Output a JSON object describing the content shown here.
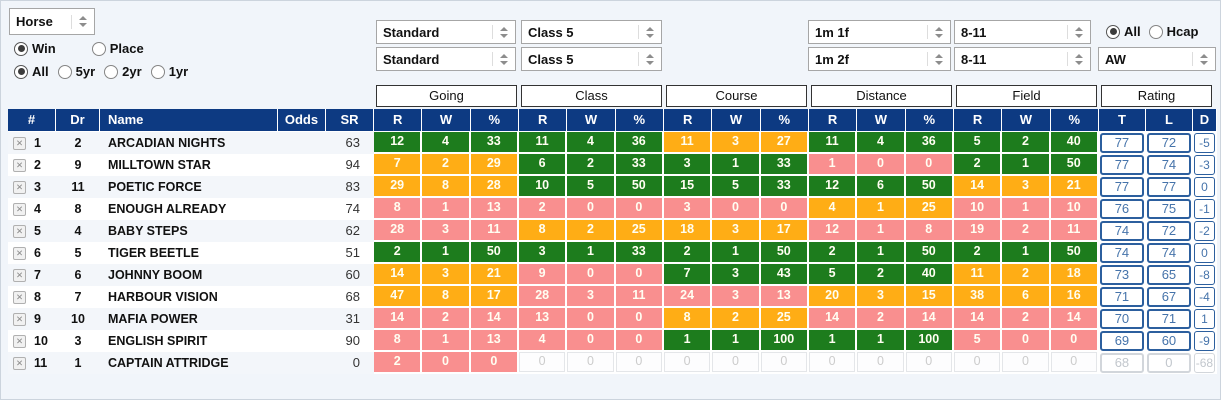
{
  "selects": {
    "horse": "Horse",
    "going1": "Standard",
    "going2": "Standard",
    "class1": "Class 5",
    "class2": "Class 5",
    "distance1": "1m 1f",
    "distance2": "1m 2f",
    "weight1": "8-11",
    "weight2": "8-11",
    "surface": "AW"
  },
  "radios": {
    "win_place": [
      {
        "label": "Win",
        "selected": true
      },
      {
        "label": "Place",
        "selected": false
      }
    ],
    "age": [
      {
        "label": "All",
        "selected": true
      },
      {
        "label": "5yr",
        "selected": false
      },
      {
        "label": "2yr",
        "selected": false
      },
      {
        "label": "1yr",
        "selected": false
      }
    ],
    "race_type": [
      {
        "label": "All",
        "selected": true
      },
      {
        "label": "Hcap",
        "selected": false
      }
    ]
  },
  "colors": {
    "header_navy": "#0d3a82",
    "green": "#1d7c1d",
    "orange": "#ffad15",
    "pink": "#f98f8f",
    "rating_border": "#2c5f9e",
    "rating_text": "#4573aa"
  },
  "table": {
    "group_headers": [
      "Going",
      "Class",
      "Course",
      "Distance",
      "Field",
      "Rating"
    ],
    "columns": {
      "num": "#",
      "dr": "Dr",
      "name": "Name",
      "odds": "Odds",
      "sr": "SR",
      "stat_sub": [
        "R",
        "W",
        "%"
      ],
      "rating_sub": [
        "T",
        "L",
        "D"
      ]
    },
    "rows": [
      {
        "num": "1",
        "dr": "2",
        "name": "ARCADIAN NIGHTS",
        "odds": "",
        "sr": "63",
        "going": {
          "r": "12",
          "w": "4",
          "pct": "33",
          "color": "green"
        },
        "class": {
          "r": "11",
          "w": "4",
          "pct": "36",
          "color": "green"
        },
        "course": {
          "r": "11",
          "w": "3",
          "pct": "27",
          "color": "orange"
        },
        "distance": {
          "r": "11",
          "w": "4",
          "pct": "36",
          "color": "green"
        },
        "field": {
          "r": "5",
          "w": "2",
          "pct": "40",
          "color": "green"
        },
        "rating": {
          "t": "77",
          "l": "72",
          "d": "-5",
          "muted": false
        }
      },
      {
        "num": "2",
        "dr": "9",
        "name": "MILLTOWN STAR",
        "odds": "",
        "sr": "94",
        "going": {
          "r": "7",
          "w": "2",
          "pct": "29",
          "color": "orange"
        },
        "class": {
          "r": "6",
          "w": "2",
          "pct": "33",
          "color": "green"
        },
        "course": {
          "r": "3",
          "w": "1",
          "pct": "33",
          "color": "green"
        },
        "distance": {
          "r": "1",
          "w": "0",
          "pct": "0",
          "color": "pink"
        },
        "field": {
          "r": "2",
          "w": "1",
          "pct": "50",
          "color": "green"
        },
        "rating": {
          "t": "77",
          "l": "74",
          "d": "-3",
          "muted": false
        }
      },
      {
        "num": "3",
        "dr": "11",
        "name": "POETIC FORCE",
        "odds": "",
        "sr": "83",
        "going": {
          "r": "29",
          "w": "8",
          "pct": "28",
          "color": "orange"
        },
        "class": {
          "r": "10",
          "w": "5",
          "pct": "50",
          "color": "green"
        },
        "course": {
          "r": "15",
          "w": "5",
          "pct": "33",
          "color": "green"
        },
        "distance": {
          "r": "12",
          "w": "6",
          "pct": "50",
          "color": "green"
        },
        "field": {
          "r": "14",
          "w": "3",
          "pct": "21",
          "color": "orange"
        },
        "rating": {
          "t": "77",
          "l": "77",
          "d": "0",
          "muted": false
        }
      },
      {
        "num": "4",
        "dr": "8",
        "name": "ENOUGH ALREADY",
        "odds": "",
        "sr": "74",
        "going": {
          "r": "8",
          "w": "1",
          "pct": "13",
          "color": "pink"
        },
        "class": {
          "r": "2",
          "w": "0",
          "pct": "0",
          "color": "pink"
        },
        "course": {
          "r": "3",
          "w": "0",
          "pct": "0",
          "color": "pink"
        },
        "distance": {
          "r": "4",
          "w": "1",
          "pct": "25",
          "color": "orange"
        },
        "field": {
          "r": "10",
          "w": "1",
          "pct": "10",
          "color": "pink"
        },
        "rating": {
          "t": "76",
          "l": "75",
          "d": "-1",
          "muted": false
        }
      },
      {
        "num": "5",
        "dr": "4",
        "name": "BABY STEPS",
        "odds": "",
        "sr": "62",
        "going": {
          "r": "28",
          "w": "3",
          "pct": "11",
          "color": "pink"
        },
        "class": {
          "r": "8",
          "w": "2",
          "pct": "25",
          "color": "orange"
        },
        "course": {
          "r": "18",
          "w": "3",
          "pct": "17",
          "color": "orange"
        },
        "distance": {
          "r": "12",
          "w": "1",
          "pct": "8",
          "color": "pink"
        },
        "field": {
          "r": "19",
          "w": "2",
          "pct": "11",
          "color": "pink"
        },
        "rating": {
          "t": "74",
          "l": "72",
          "d": "-2",
          "muted": false
        }
      },
      {
        "num": "6",
        "dr": "5",
        "name": "TIGER BEETLE",
        "odds": "",
        "sr": "51",
        "going": {
          "r": "2",
          "w": "1",
          "pct": "50",
          "color": "green"
        },
        "class": {
          "r": "3",
          "w": "1",
          "pct": "33",
          "color": "green"
        },
        "course": {
          "r": "2",
          "w": "1",
          "pct": "50",
          "color": "green"
        },
        "distance": {
          "r": "2",
          "w": "1",
          "pct": "50",
          "color": "green"
        },
        "field": {
          "r": "2",
          "w": "1",
          "pct": "50",
          "color": "green"
        },
        "rating": {
          "t": "74",
          "l": "74",
          "d": "0",
          "muted": false
        }
      },
      {
        "num": "7",
        "dr": "6",
        "name": "JOHNNY BOOM",
        "odds": "",
        "sr": "60",
        "going": {
          "r": "14",
          "w": "3",
          "pct": "21",
          "color": "orange"
        },
        "class": {
          "r": "9",
          "w": "0",
          "pct": "0",
          "color": "pink"
        },
        "course": {
          "r": "7",
          "w": "3",
          "pct": "43",
          "color": "green"
        },
        "distance": {
          "r": "5",
          "w": "2",
          "pct": "40",
          "color": "green"
        },
        "field": {
          "r": "11",
          "w": "2",
          "pct": "18",
          "color": "orange"
        },
        "rating": {
          "t": "73",
          "l": "65",
          "d": "-8",
          "muted": false
        }
      },
      {
        "num": "8",
        "dr": "7",
        "name": "HARBOUR VISION",
        "odds": "",
        "sr": "68",
        "going": {
          "r": "47",
          "w": "8",
          "pct": "17",
          "color": "orange"
        },
        "class": {
          "r": "28",
          "w": "3",
          "pct": "11",
          "color": "pink"
        },
        "course": {
          "r": "24",
          "w": "3",
          "pct": "13",
          "color": "pink"
        },
        "distance": {
          "r": "20",
          "w": "3",
          "pct": "15",
          "color": "orange"
        },
        "field": {
          "r": "38",
          "w": "6",
          "pct": "16",
          "color": "orange"
        },
        "rating": {
          "t": "71",
          "l": "67",
          "d": "-4",
          "muted": false
        }
      },
      {
        "num": "9",
        "dr": "10",
        "name": "MAFIA POWER",
        "odds": "",
        "sr": "31",
        "going": {
          "r": "14",
          "w": "2",
          "pct": "14",
          "color": "pink"
        },
        "class": {
          "r": "13",
          "w": "0",
          "pct": "0",
          "color": "pink"
        },
        "course": {
          "r": "8",
          "w": "2",
          "pct": "25",
          "color": "orange"
        },
        "distance": {
          "r": "14",
          "w": "2",
          "pct": "14",
          "color": "pink"
        },
        "field": {
          "r": "14",
          "w": "2",
          "pct": "14",
          "color": "pink"
        },
        "rating": {
          "t": "70",
          "l": "71",
          "d": "1",
          "muted": false
        }
      },
      {
        "num": "10",
        "dr": "3",
        "name": "ENGLISH SPIRIT",
        "odds": "",
        "sr": "90",
        "going": {
          "r": "8",
          "w": "1",
          "pct": "13",
          "color": "pink"
        },
        "class": {
          "r": "4",
          "w": "0",
          "pct": "0",
          "color": "pink"
        },
        "course": {
          "r": "1",
          "w": "1",
          "pct": "100",
          "color": "green"
        },
        "distance": {
          "r": "1",
          "w": "1",
          "pct": "100",
          "color": "green"
        },
        "field": {
          "r": "5",
          "w": "0",
          "pct": "0",
          "color": "pink"
        },
        "rating": {
          "t": "69",
          "l": "60",
          "d": "-9",
          "muted": false
        }
      },
      {
        "num": "11",
        "dr": "1",
        "name": "CAPTAIN ATTRIDGE",
        "odds": "",
        "sr": "0",
        "going": {
          "r": "2",
          "w": "0",
          "pct": "0",
          "color": "pink"
        },
        "class": {
          "r": "0",
          "w": "0",
          "pct": "0",
          "color": "gray"
        },
        "course": {
          "r": "0",
          "w": "0",
          "pct": "0",
          "color": "gray"
        },
        "distance": {
          "r": "0",
          "w": "0",
          "pct": "0",
          "color": "gray"
        },
        "field": {
          "r": "0",
          "w": "0",
          "pct": "0",
          "color": "gray"
        },
        "rating": {
          "t": "68",
          "l": "0",
          "d": "-68",
          "muted": true
        }
      }
    ]
  }
}
